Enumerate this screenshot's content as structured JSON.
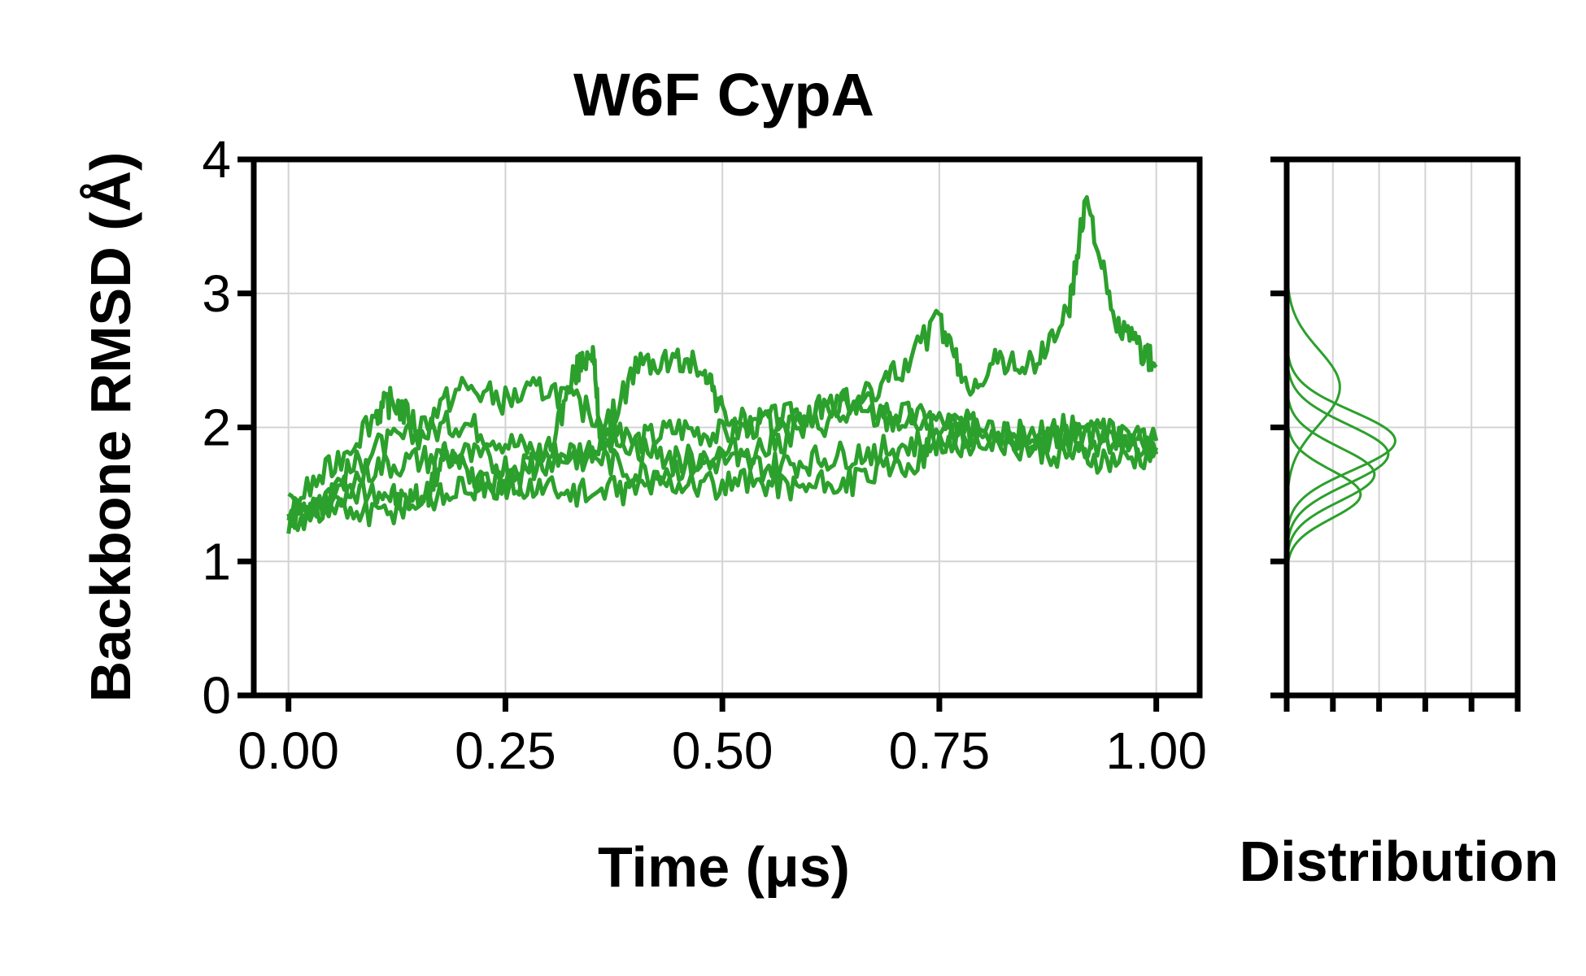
{
  "chart_data": [
    {
      "type": "line",
      "title": "W6F CypA",
      "xlabel": "Time (μs)",
      "ylabel": "Backbone RMSD (Å)",
      "xlim": [
        -0.04,
        1.05
      ],
      "ylim": [
        0,
        4
      ],
      "xticks": [
        "0.00",
        "0.25",
        "0.50",
        "0.75",
        "1.00"
      ],
      "yticks": [
        "0",
        "1",
        "2",
        "3",
        "4"
      ],
      "grid": true,
      "color": "#2ca02c",
      "series": [
        {
          "x": [
            0.0,
            0.05,
            0.1,
            0.13,
            0.16,
            0.18,
            0.22,
            0.26,
            0.3,
            0.33,
            0.35,
            0.36,
            0.4,
            0.44,
            0.48,
            0.5,
            0.54,
            0.58,
            0.62,
            0.66,
            0.7,
            0.75,
            0.78,
            0.82,
            0.86,
            0.9,
            0.92,
            0.95,
            0.98,
            1.0
          ],
          "values": [
            1.3,
            1.45,
            1.55,
            1.45,
            1.5,
            1.8,
            1.6,
            1.55,
            1.85,
            2.4,
            2.6,
            1.9,
            2.45,
            2.5,
            2.45,
            2.1,
            2.0,
            2.05,
            2.15,
            2.2,
            2.4,
            2.8,
            2.3,
            2.5,
            2.45,
            2.9,
            3.75,
            2.8,
            2.6,
            2.45
          ]
        },
        {
          "x": [
            0.0,
            0.05,
            0.1,
            0.15,
            0.2,
            0.25,
            0.3,
            0.35,
            0.4,
            0.45,
            0.5,
            0.55,
            0.6,
            0.65,
            0.7,
            0.75,
            0.8,
            0.85,
            0.9,
            0.95,
            1.0
          ],
          "values": [
            1.35,
            1.55,
            1.85,
            1.95,
            2.05,
            1.9,
            1.8,
            1.85,
            1.9,
            2.0,
            1.95,
            2.05,
            2.1,
            2.2,
            2.1,
            2.05,
            2.0,
            1.95,
            1.9,
            1.85,
            1.9
          ]
        },
        {
          "x": [
            0.0,
            0.05,
            0.1,
            0.15,
            0.2,
            0.25,
            0.3,
            0.35,
            0.4,
            0.45,
            0.5,
            0.55,
            0.6,
            0.65,
            0.7,
            0.75,
            0.8,
            0.85,
            0.9,
            0.95,
            1.0
          ],
          "values": [
            1.3,
            1.5,
            1.7,
            1.75,
            1.8,
            1.7,
            1.75,
            1.8,
            1.65,
            1.7,
            1.75,
            1.7,
            1.75,
            1.8,
            1.85,
            1.9,
            1.95,
            1.85,
            1.8,
            1.75,
            1.8
          ]
        },
        {
          "x": [
            0.0,
            0.05,
            0.1,
            0.15,
            0.2,
            0.25,
            0.3,
            0.35,
            0.4,
            0.45,
            0.5,
            0.55,
            0.6,
            0.65,
            0.7,
            0.75,
            0.8,
            0.85,
            0.9,
            0.95,
            1.0
          ],
          "values": [
            1.3,
            1.4,
            1.35,
            1.45,
            1.55,
            1.6,
            1.55,
            1.5,
            1.55,
            1.6,
            1.55,
            1.6,
            1.55,
            1.6,
            1.7,
            1.85,
            1.9,
            1.95,
            2.0,
            1.95,
            1.9
          ]
        },
        {
          "x": [
            0.0,
            0.05,
            0.1,
            0.12,
            0.15,
            0.2,
            0.25,
            0.3,
            0.35,
            0.4,
            0.45,
            0.5,
            0.55,
            0.6,
            0.65,
            0.7,
            0.75,
            0.8,
            0.85,
            0.9,
            0.95,
            1.0
          ],
          "values": [
            1.4,
            1.7,
            2.1,
            2.2,
            2.0,
            2.3,
            2.2,
            2.3,
            2.1,
            1.85,
            1.75,
            1.8,
            1.85,
            2.0,
            2.1,
            2.05,
            2.0,
            1.95,
            1.9,
            1.95,
            1.9,
            1.85
          ]
        }
      ]
    },
    {
      "type": "line",
      "title": "",
      "xlabel": "Distribution",
      "ylabel": "",
      "ylim": [
        0,
        4
      ],
      "xlim": [
        0,
        5
      ],
      "grid": true,
      "color": "#2ca02c",
      "series": [
        {
          "peak": 2.3,
          "width": 0.28,
          "height": 1.15
        },
        {
          "peak": 1.9,
          "width": 0.22,
          "height": 2.35
        },
        {
          "peak": 1.8,
          "width": 0.22,
          "height": 2.2
        },
        {
          "peak": 1.65,
          "width": 0.2,
          "height": 1.9
        },
        {
          "peak": 1.5,
          "width": 0.18,
          "height": 1.6
        }
      ]
    }
  ]
}
